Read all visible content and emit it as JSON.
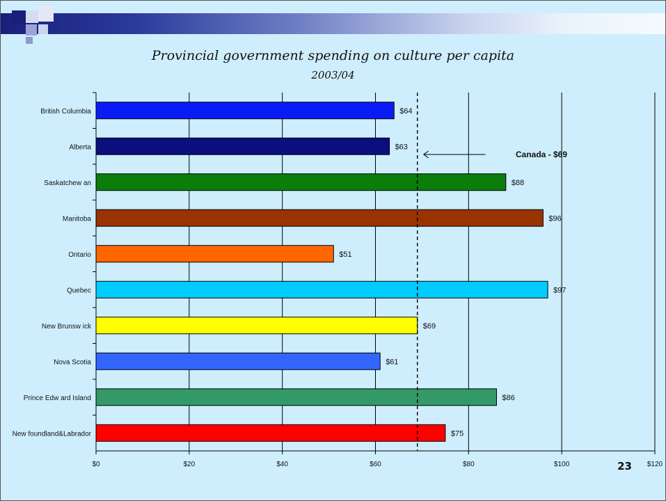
{
  "slide": {
    "page_number": "23"
  },
  "chart_data": {
    "type": "bar",
    "orientation": "horizontal",
    "title": "Provincial government spending on culture per capita",
    "subtitle": "2003/04",
    "categories": [
      "British Columbia",
      "Alberta",
      "Saskatchew an",
      "Manitoba",
      "Ontario",
      "Quebec",
      "New Brunsw ick",
      "Nova Scotia",
      "Prince Edw ard Island",
      "New foundland&Labrador"
    ],
    "values": [
      64,
      63,
      88,
      96,
      51,
      97,
      69,
      61,
      86,
      75
    ],
    "value_labels": [
      "$64",
      "$63",
      "$88",
      "$96",
      "$51",
      "$97",
      "$69",
      "$61",
      "$86",
      "$75"
    ],
    "colors": [
      "#0a1cf5",
      "#0a0f7d",
      "#0a7d0a",
      "#993300",
      "#ff6600",
      "#00ccff",
      "#ffff00",
      "#3366ff",
      "#339966",
      "#ff0000"
    ],
    "xlim": [
      0,
      120
    ],
    "x_ticks": [
      "$0",
      "$20",
      "$40",
      "$60",
      "$80",
      "$100",
      "$120"
    ],
    "grid": "vertical",
    "reference": {
      "value": 69,
      "label": "Canada - $69",
      "style": "dashed"
    }
  }
}
